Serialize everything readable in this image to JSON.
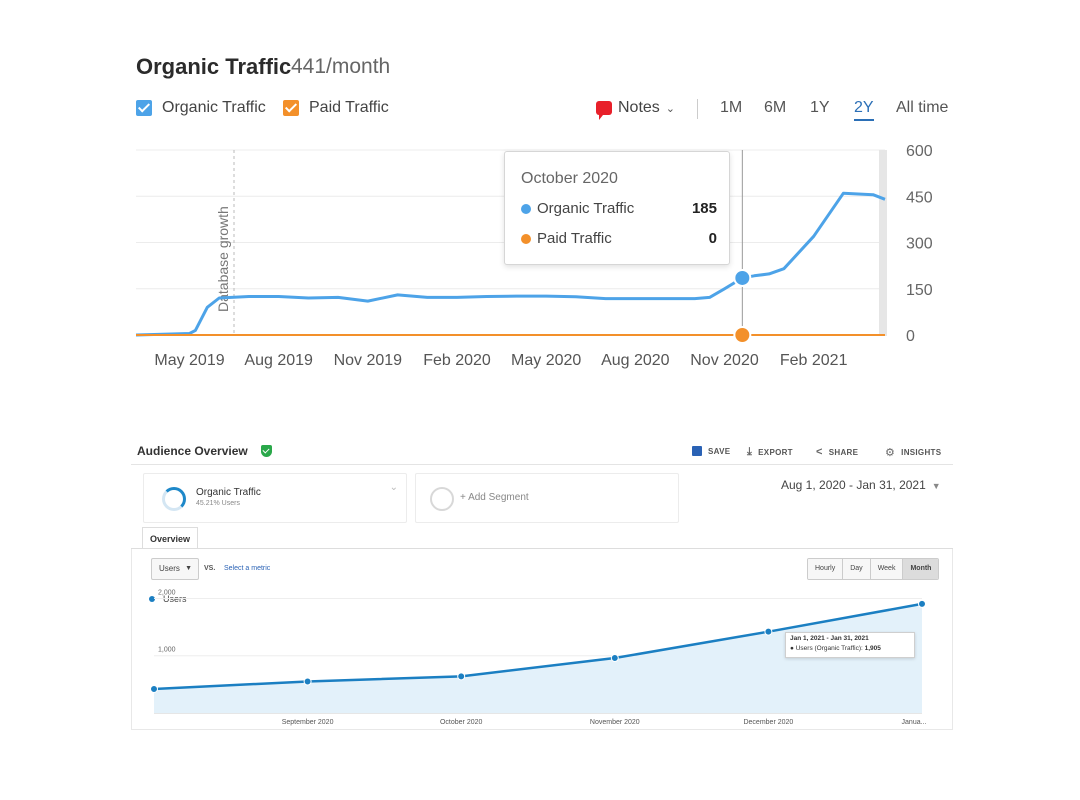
{
  "top_panel": {
    "title": "Organic Traffic",
    "subtitle": "441/month",
    "legend": [
      {
        "label": "Organic Traffic",
        "color": "#4da3e8"
      },
      {
        "label": "Paid Traffic",
        "color": "#f3902a"
      }
    ],
    "notes_label": "Notes",
    "ranges": [
      "1M",
      "6M",
      "1Y",
      "2Y",
      "All time"
    ],
    "active_range": "2Y",
    "annotation": "Database growth",
    "tooltip": {
      "title": "October 2020",
      "rows": [
        {
          "label": "Organic Traffic",
          "value": "185",
          "color": "#4da3e8"
        },
        {
          "label": "Paid Traffic",
          "value": "0",
          "color": "#f3902a"
        }
      ]
    }
  },
  "bottom_panel": {
    "title": "Audience Overview",
    "tools": [
      "SAVE",
      "EXPORT",
      "SHARE",
      "INSIGHTS"
    ],
    "segment": {
      "name": "Organic Traffic",
      "percent": "45.21% Users"
    },
    "add_segment": "+ Add Segment",
    "date_range": "Aug 1, 2020 - Jan 31, 2021",
    "tab": "Overview",
    "metric_select": "Users",
    "vs_label": "VS.",
    "select_metric": "Select a metric",
    "granularity": [
      "Hourly",
      "Day",
      "Week",
      "Month"
    ],
    "active_granularity": "Month",
    "legend_label": "Users",
    "tooltip": {
      "title": "Jan 1, 2021 - Jan 31, 2021",
      "series": "Users (Organic Traffic):",
      "value": "1,905"
    }
  },
  "chart_data": [
    {
      "type": "line",
      "title": "Organic Traffic",
      "x_ticks": [
        "May 2019",
        "Aug 2019",
        "Nov 2019",
        "Feb 2020",
        "May 2020",
        "Aug 2020",
        "Nov 2020",
        "Feb 2021"
      ],
      "y_ticks": [
        "600",
        "450",
        "300",
        "150",
        "0"
      ],
      "ylim": [
        0,
        600
      ],
      "x_range_months": [
        -1.8,
        23.4
      ],
      "series": [
        {
          "name": "Organic Traffic",
          "color": "#4da3e8",
          "months": [
            -1.8,
            0,
            0.2,
            0.6,
            1,
            2,
            3,
            4,
            5,
            6,
            7,
            8,
            9,
            10,
            11,
            12,
            13,
            14,
            15,
            16,
            17,
            17.5,
            18,
            18.6,
            19,
            19.5,
            20,
            21,
            22,
            23,
            23.4
          ],
          "values": [
            0,
            5,
            15,
            90,
            120,
            125,
            125,
            120,
            122,
            110,
            130,
            122,
            122,
            125,
            126,
            126,
            124,
            118,
            118,
            118,
            118,
            122,
            150,
            185,
            192,
            198,
            215,
            320,
            460,
            455,
            440
          ]
        },
        {
          "name": "Paid Traffic",
          "color": "#f3902a",
          "months": [
            -1.8,
            23.4
          ],
          "values": [
            0,
            0
          ]
        }
      ],
      "highlight": {
        "month": 18.6,
        "organic": 185,
        "paid": 0
      }
    },
    {
      "type": "area",
      "x_ticks": [
        "September 2020",
        "October 2020",
        "November 2020",
        "December 2020",
        "Janua..."
      ],
      "y_ticks": [
        "2,000",
        "1,000"
      ],
      "ylim": [
        0,
        2200
      ],
      "series": [
        {
          "name": "Users",
          "color": "#1b7fc2",
          "months": [
            0,
            1,
            2,
            3,
            4,
            5
          ],
          "values": [
            420,
            550,
            640,
            960,
            1420,
            1905
          ]
        }
      ]
    }
  ]
}
